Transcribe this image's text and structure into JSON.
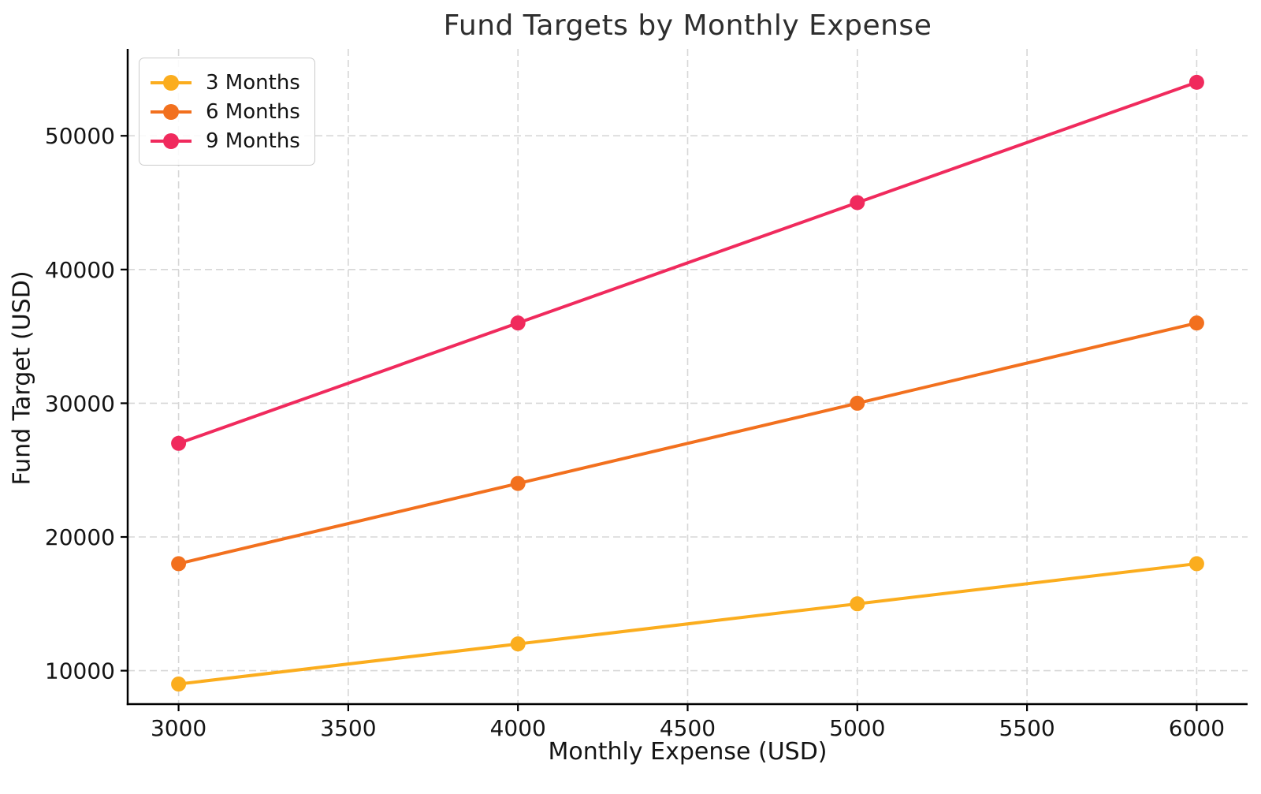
{
  "chart_data": {
    "type": "line",
    "title": "Fund Targets by Monthly Expense",
    "xlabel": "Monthly Expense (USD)",
    "ylabel": "Fund Target (USD)",
    "x": [
      3000,
      4000,
      5000,
      6000
    ],
    "series": [
      {
        "name": "3 Months",
        "color": "#FBAD1E",
        "values": [
          9000,
          12000,
          15000,
          18000
        ]
      },
      {
        "name": "6 Months",
        "color": "#F2701E",
        "values": [
          18000,
          24000,
          30000,
          36000
        ]
      },
      {
        "name": "9 Months",
        "color": "#F02A5D",
        "values": [
          27000,
          36000,
          45000,
          54000
        ]
      }
    ],
    "xticks": [
      3000,
      3500,
      4000,
      4500,
      5000,
      5500,
      6000
    ],
    "yticks": [
      10000,
      20000,
      30000,
      40000,
      50000
    ],
    "xlim": [
      2850,
      6150
    ],
    "ylim": [
      7500,
      56500
    ],
    "grid": true,
    "grid_style": "dashed",
    "grid_color": "#d7d7d7",
    "spine_color": "#000000",
    "legend_position": "upper left"
  }
}
